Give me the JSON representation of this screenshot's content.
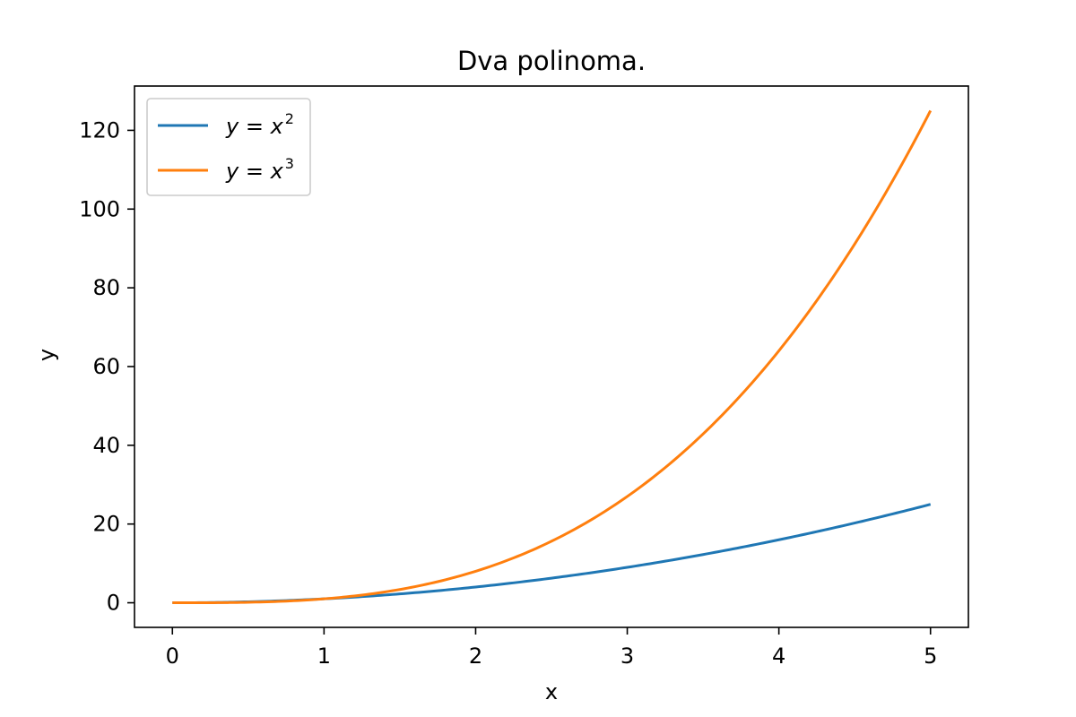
{
  "chart_data": {
    "type": "line",
    "title": "Dva polinoma.",
    "xlabel": "x",
    "ylabel": "y",
    "xlim": [
      -0.25,
      5.25
    ],
    "ylim": [
      -6.25,
      131.25
    ],
    "xticks": [
      0,
      1,
      2,
      3,
      4,
      5
    ],
    "yticks": [
      0,
      20,
      40,
      60,
      80,
      100,
      120
    ],
    "grid": false,
    "legend_position": "top-left",
    "series": [
      {
        "name": "y = x²",
        "legend_base": "y = x",
        "legend_sup": "2",
        "color": "#1f77b4",
        "exponent": 2,
        "x": [
          0,
          0.25,
          0.5,
          0.75,
          1,
          1.25,
          1.5,
          1.75,
          2,
          2.25,
          2.5,
          2.75,
          3,
          3.25,
          3.5,
          3.75,
          4,
          4.25,
          4.5,
          4.75,
          5
        ],
        "y": [
          0,
          0.0625,
          0.25,
          0.5625,
          1,
          1.5625,
          2.25,
          3.0625,
          4,
          5.0625,
          6.25,
          7.5625,
          9,
          10.5625,
          12.25,
          14.0625,
          16,
          18.0625,
          20.25,
          22.5625,
          25
        ]
      },
      {
        "name": "y = x³",
        "legend_base": "y = x",
        "legend_sup": "3",
        "color": "#ff7f0e",
        "exponent": 3,
        "x": [
          0,
          0.25,
          0.5,
          0.75,
          1,
          1.25,
          1.5,
          1.75,
          2,
          2.25,
          2.5,
          2.75,
          3,
          3.25,
          3.5,
          3.75,
          4,
          4.25,
          4.5,
          4.75,
          5
        ],
        "y": [
          0,
          0.015625,
          0.125,
          0.421875,
          1,
          1.953125,
          3.375,
          5.359375,
          8,
          11.390625,
          15.625,
          20.796875,
          27,
          34.328125,
          42.875,
          52.734375,
          64,
          76.765625,
          91.125,
          107.171875,
          125
        ]
      }
    ]
  }
}
